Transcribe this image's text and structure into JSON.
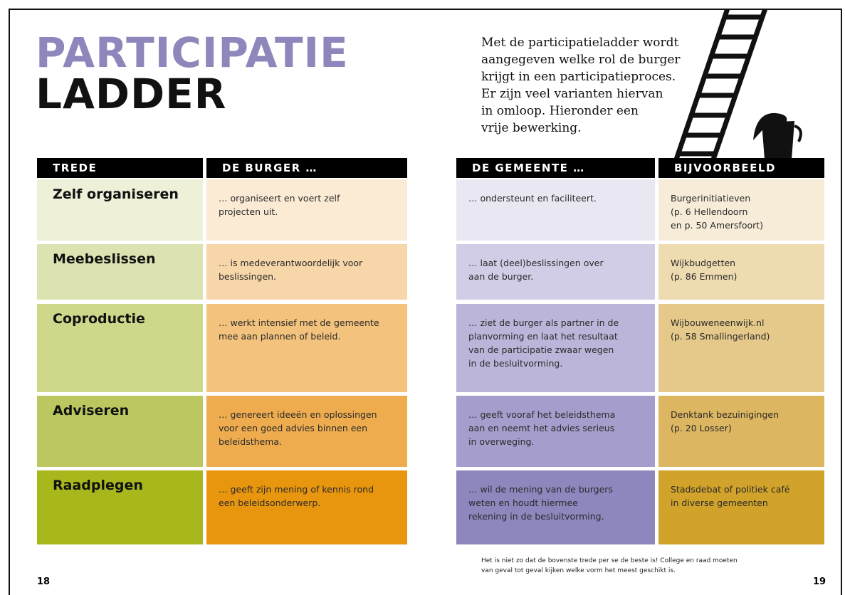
{
  "header": {
    "title_line1": "PARTICIPATIE",
    "title_line2": "LADDER"
  },
  "intro": [
    "Met de participatieladder wordt",
    "aangegeven welke rol de burger",
    "krijgt in een participatieproces.",
    "Er zijn veel varianten hiervan",
    "in omloop. Hieronder een",
    "vrije bewerking."
  ],
  "table": {
    "columns": [
      "TREDE",
      "DE BURGER …",
      "DE GEMEENTE …",
      "BIJVOORBEELD"
    ],
    "rows": [
      [
        "Zelf organiseren",
        [
          "… organiseert en voert zelf",
          "projecten uit."
        ],
        [
          "… ondersteunt en faciliteert."
        ],
        [
          "Burgerinitiatieven",
          "(p. 6 Hellendoorn",
          "en p. 50 Amersfoort)"
        ]
      ],
      [
        "Meebeslissen",
        [
          "… is medeverantwoordelijk voor",
          "beslissingen."
        ],
        [
          "… laat (deel)beslissingen over",
          "aan de burger."
        ],
        [
          "Wijkbudgetten",
          "(p. 86 Emmen)"
        ]
      ],
      [
        "Coproductie",
        [
          "… werkt intensief met de gemeente",
          "mee aan plannen of beleid."
        ],
        [
          "… ziet de burger als partner in de",
          "planvorming en laat het resultaat",
          "van de participatie zwaar wegen",
          "in de besluitvorming."
        ],
        [
          "Wijbouweneenwijk.nl",
          "(p. 58 Smallingerland)"
        ]
      ],
      [
        "Adviseren",
        [
          "… genereert ideeën en oplossingen",
          "voor een goed advies binnen een",
          "beleidsthema."
        ],
        [
          "… geeft vooraf het beleidsthema",
          "aan en neemt het advies serieus",
          "in overweging."
        ],
        [
          "Denktank bezuinigingen",
          "(p. 20 Losser)"
        ]
      ],
      [
        "Raadplegen",
        [
          "… geeft zijn mening of kennis rond",
          "een beleidsonderwerp."
        ],
        [
          "… wil de mening van de burgers",
          "weten en houdt hiermee",
          "rekening in de besluitvorming."
        ],
        [
          "Stadsdebat of politiek café",
          "in diverse gemeenten"
        ]
      ]
    ]
  },
  "footnote": [
    "Het is niet zo dat de bovenste trede per se de beste is! College en raad moeten",
    "van geval tot geval kijken welke vorm het meest geschikt is."
  ],
  "page_numbers": [
    "18",
    "19"
  ]
}
